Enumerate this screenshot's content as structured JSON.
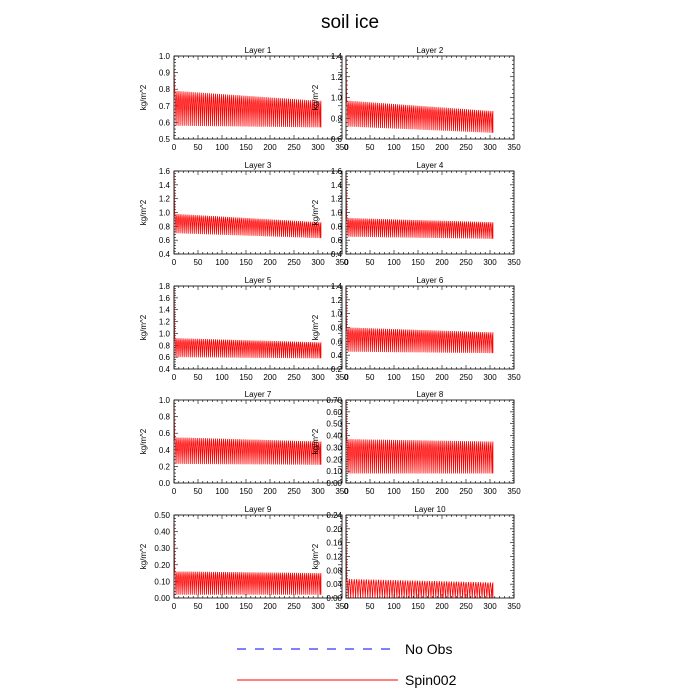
{
  "chart_data": {
    "type": "line",
    "title": "soil ice",
    "legend": {
      "position": "bottom-center",
      "entries": [
        {
          "name": "No Obs",
          "style": "dashed",
          "color": "#0000ff"
        },
        {
          "name": "Spin002",
          "style": "solid",
          "color": "#ff0000"
        }
      ]
    },
    "panels": [
      {
        "title": "Layer 1",
        "ylabel": "kg/m^2",
        "xlim": [
          0,
          350
        ],
        "xticks": [
          "0",
          "50",
          "100",
          "150",
          "200",
          "250",
          "300",
          "350"
        ],
        "ylim": [
          0.5,
          1.0
        ],
        "yticks": [
          "0.5",
          "0.6",
          "0.7",
          "0.8",
          "0.9",
          "1.0"
        ],
        "series": [
          {
            "name": "Spin002",
            "x_end": 306,
            "cycles": 72,
            "first_value": 0.92,
            "upper_start": 0.79,
            "upper_end": 0.73,
            "lower_start": 0.58,
            "lower_end": 0.57
          }
        ]
      },
      {
        "title": "Layer 2",
        "ylabel": "kg/m^2",
        "xlim": [
          0,
          350
        ],
        "xticks": [
          "0",
          "50",
          "100",
          "150",
          "200",
          "250",
          "300",
          "350"
        ],
        "ylim": [
          0.6,
          1.4
        ],
        "yticks": [
          "0.6",
          "0.8",
          "1.0",
          "1.2",
          "1.4"
        ],
        "series": [
          {
            "name": "Spin002",
            "x_end": 306,
            "cycles": 72,
            "first_value": 1.38,
            "upper_start": 0.97,
            "upper_end": 0.87,
            "lower_start": 0.72,
            "lower_end": 0.66
          }
        ]
      },
      {
        "title": "Layer 3",
        "ylabel": "kg/m^2",
        "xlim": [
          0,
          350
        ],
        "xticks": [
          "0",
          "50",
          "100",
          "150",
          "200",
          "250",
          "300",
          "350"
        ],
        "ylim": [
          0.4,
          1.6
        ],
        "yticks": [
          "0.4",
          "0.6",
          "0.8",
          "1.0",
          "1.2",
          "1.4",
          "1.6"
        ],
        "series": [
          {
            "name": "Spin002",
            "x_end": 306,
            "cycles": 72,
            "first_value": 1.58,
            "upper_start": 0.98,
            "upper_end": 0.86,
            "lower_start": 0.7,
            "lower_end": 0.63
          }
        ]
      },
      {
        "title": "Layer 4",
        "ylabel": "kg/m^2",
        "xlim": [
          0,
          350
        ],
        "xticks": [
          "0",
          "50",
          "100",
          "150",
          "200",
          "250",
          "300",
          "350"
        ],
        "ylim": [
          0.4,
          1.6
        ],
        "yticks": [
          "0.4",
          "0.6",
          "0.8",
          "1.0",
          "1.2",
          "1.4",
          "1.6"
        ],
        "series": [
          {
            "name": "Spin002",
            "x_end": 306,
            "cycles": 72,
            "first_value": 1.58,
            "upper_start": 0.92,
            "upper_end": 0.86,
            "lower_start": 0.65,
            "lower_end": 0.62
          }
        ]
      },
      {
        "title": "Layer 5",
        "ylabel": "kg/m^2",
        "xlim": [
          0,
          350
        ],
        "xticks": [
          "0",
          "50",
          "100",
          "150",
          "200",
          "250",
          "300",
          "350"
        ],
        "ylim": [
          0.4,
          1.8
        ],
        "yticks": [
          "0.4",
          "0.6",
          "0.8",
          "1.0",
          "1.2",
          "1.4",
          "1.6",
          "1.8"
        ],
        "series": [
          {
            "name": "Spin002",
            "x_end": 306,
            "cycles": 72,
            "first_value": 1.75,
            "upper_start": 0.92,
            "upper_end": 0.85,
            "lower_start": 0.6,
            "lower_end": 0.58
          }
        ]
      },
      {
        "title": "Layer 6",
        "ylabel": "kg/m^2",
        "xlim": [
          0,
          350
        ],
        "xticks": [
          "0",
          "50",
          "100",
          "150",
          "200",
          "250",
          "300",
          "350"
        ],
        "ylim": [
          0.2,
          1.4
        ],
        "yticks": [
          "0.2",
          "0.4",
          "0.6",
          "0.8",
          "1.0",
          "1.2",
          "1.4"
        ],
        "series": [
          {
            "name": "Spin002",
            "x_end": 306,
            "cycles": 72,
            "first_value": 1.35,
            "upper_start": 0.8,
            "upper_end": 0.73,
            "lower_start": 0.45,
            "lower_end": 0.43
          }
        ]
      },
      {
        "title": "Layer 7",
        "ylabel": "kg/m^2",
        "xlim": [
          0,
          350
        ],
        "xticks": [
          "0",
          "50",
          "100",
          "150",
          "200",
          "250",
          "300",
          "350"
        ],
        "ylim": [
          0.0,
          1.0
        ],
        "yticks": [
          "0.0",
          "0.2",
          "0.4",
          "0.6",
          "0.8",
          "1.0"
        ],
        "series": [
          {
            "name": "Spin002",
            "x_end": 306,
            "cycles": 72,
            "first_value": 0.96,
            "upper_start": 0.55,
            "upper_end": 0.5,
            "lower_start": 0.23,
            "lower_end": 0.22
          }
        ]
      },
      {
        "title": "Layer 8",
        "ylabel": "kg/m^2",
        "xlim": [
          0,
          350
        ],
        "xticks": [
          "0",
          "50",
          "100",
          "150",
          "200",
          "250",
          "300",
          "350"
        ],
        "ylim": [
          0.0,
          0.7
        ],
        "yticks": [
          "0.00",
          "0.10",
          "0.20",
          "0.30",
          "0.40",
          "0.50",
          "0.60",
          "0.70"
        ],
        "series": [
          {
            "name": "Spin002",
            "x_end": 306,
            "cycles": 72,
            "first_value": 0.68,
            "upper_start": 0.37,
            "upper_end": 0.35,
            "lower_start": 0.08,
            "lower_end": 0.08
          }
        ]
      },
      {
        "title": "Layer 9",
        "ylabel": "kg/m^2",
        "xlim": [
          0,
          350
        ],
        "xticks": [
          "0",
          "50",
          "100",
          "150",
          "200",
          "250",
          "300",
          "350"
        ],
        "ylim": [
          0.0,
          0.5
        ],
        "yticks": [
          "0.00",
          "0.10",
          "0.20",
          "0.30",
          "0.40",
          "0.50"
        ],
        "series": [
          {
            "name": "Spin002",
            "x_end": 306,
            "cycles": 72,
            "first_value": 0.45,
            "upper_start": 0.16,
            "upper_end": 0.15,
            "lower_start": 0.02,
            "lower_end": 0.02
          }
        ]
      },
      {
        "title": "Layer 10",
        "ylabel": "kg/m^2",
        "xlim": [
          0,
          350
        ],
        "xticks": [
          "0",
          "50",
          "100",
          "150",
          "200",
          "250",
          "300",
          "350"
        ],
        "ylim": [
          0.0,
          0.24
        ],
        "yticks": [
          "0.00",
          "0.04",
          "0.08",
          "0.12",
          "0.16",
          "0.20",
          "0.24"
        ],
        "series": [
          {
            "name": "Spin002",
            "x_end": 306,
            "cycles": 60,
            "first_value": 0.23,
            "upper_start": 0.055,
            "upper_end": 0.045,
            "lower_start": 0.0,
            "lower_end": 0.0
          }
        ]
      }
    ]
  }
}
